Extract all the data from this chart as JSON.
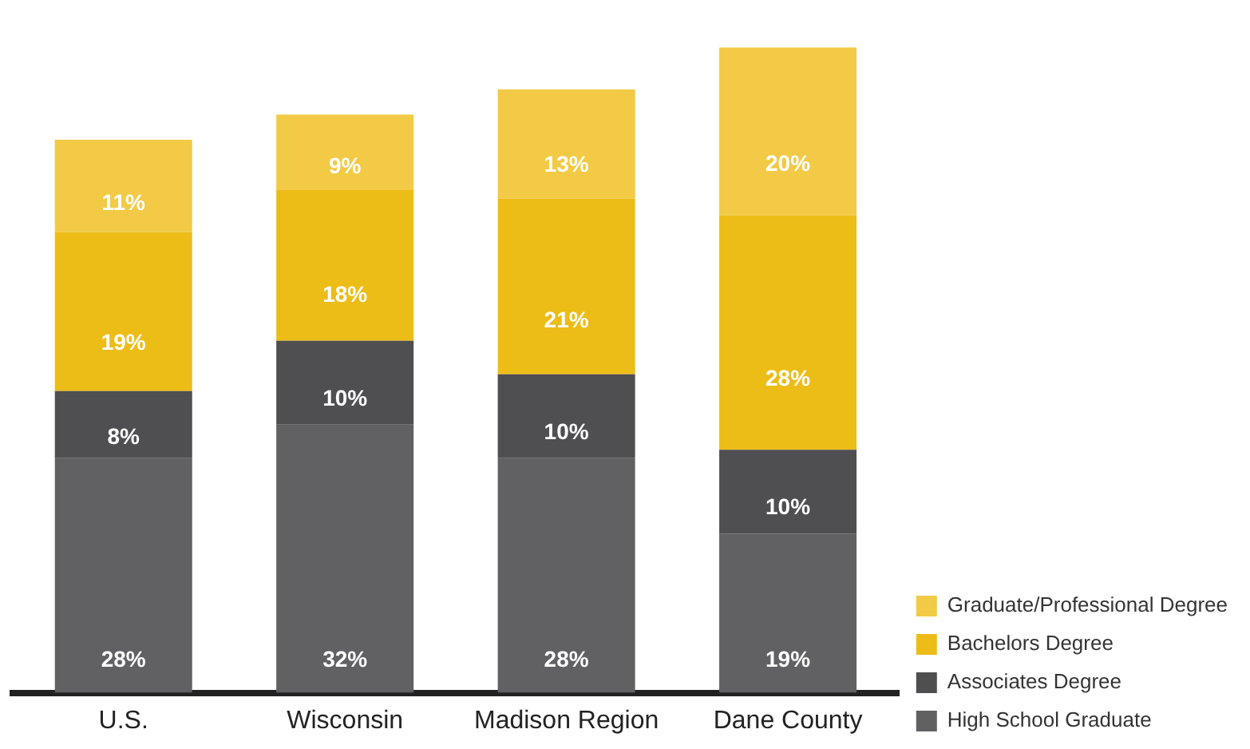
{
  "chart_data": {
    "type": "bar",
    "stacked": true,
    "tick_labels": "x",
    "grid": false,
    "legend": "bottom right",
    "categories": [
      "U.S.",
      "Wisconsin",
      "Madison Region",
      "Dane County"
    ],
    "series": [
      {
        "name": "High School Graduate",
        "color": "#616062",
        "values": [
          28,
          32,
          28,
          19
        ],
        "value_labels": [
          "28%",
          "32%",
          "28%",
          "19%"
        ]
      },
      {
        "name": "Associates Degree",
        "color": "#4f4e50",
        "values": [
          8,
          10,
          10,
          10
        ],
        "value_labels": [
          "8%",
          "10%",
          "10%",
          "10%"
        ]
      },
      {
        "name": "Bachelors Degree",
        "color": "#ecbd17",
        "values": [
          19,
          18,
          21,
          28
        ],
        "value_labels": [
          "19%",
          "18%",
          "21%",
          "28%"
        ]
      },
      {
        "name": "Graduate/Professional Degree",
        "color": "#f2ca45",
        "values": [
          11,
          9,
          13,
          20
        ],
        "value_labels": [
          "11%",
          "9%",
          "13%",
          "20%"
        ]
      }
    ]
  }
}
